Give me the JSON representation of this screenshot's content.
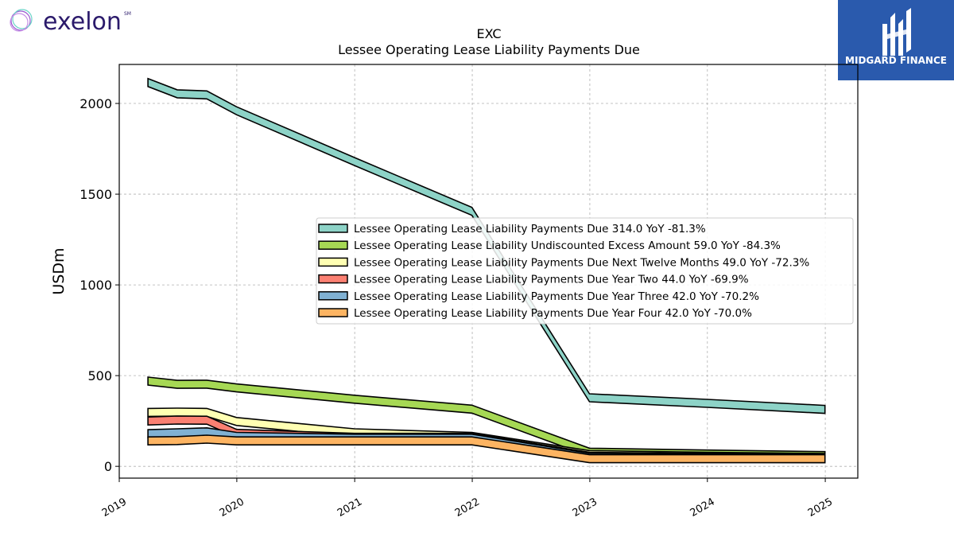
{
  "brand": {
    "left_logo_text": "exelon",
    "left_logo_mark": "SM",
    "right_logo_text": "MIDGARD FINANCE",
    "right_logo_bg": "#2a5aad"
  },
  "chart_data": {
    "type": "area",
    "title": "EXC",
    "subtitle": "Lessee Operating Lease Liability Payments Due",
    "ylabel": "USDm",
    "xlabel": "",
    "ylim": [
      -65,
      2215
    ],
    "yticks": [
      0,
      500,
      1000,
      1500,
      2000
    ],
    "xlim": [
      "2019-01-01",
      "2025-04-12"
    ],
    "xticks": [
      "2019",
      "2020",
      "2021",
      "2022",
      "2023",
      "2024",
      "2025"
    ],
    "xtick_dates": [
      "2019-01-01",
      "2020-01-01",
      "2021-01-01",
      "2022-01-01",
      "2023-01-01",
      "2024-01-01",
      "2025-01-01"
    ],
    "grid": true,
    "legend_position": "center-right",
    "x": [
      "2019-03-31",
      "2019-06-30",
      "2019-09-30",
      "2019-12-31",
      "2020-12-31",
      "2021-12-31",
      "2022-12-31",
      "2023-12-31",
      "2024-12-31"
    ],
    "series": [
      {
        "name": "Lessee Operating Lease Liability Payments Due",
        "legend": "Lessee Operating Lease Liability Payments Due  314.0 YoY -81.3%",
        "color": "#8dd3c7",
        "values": [
          2115,
          2053,
          2047,
          1960,
          1680,
          1405,
          378,
          347,
          314
        ]
      },
      {
        "name": "Lessee Operating Lease Liability Undiscounted Excess Amount",
        "legend": "Lessee Operating Lease Liability Undiscounted Excess Amount  59.0 YoY -84.3%",
        "color": "#a6d854",
        "values": [
          470,
          452,
          453,
          432,
          370,
          315,
          78,
          68,
          59
        ]
      },
      {
        "name": "Lessee Operating Lease Liability Payments Due Next Twelve Months",
        "legend": "Lessee Operating Lease Liability Payments Due Next Twelve Months  49.0 YoY -72.3%",
        "color": "#ffffb3",
        "values": [
          297,
          299,
          297,
          247,
          185,
          165,
          65,
          55,
          49
        ]
      },
      {
        "name": "Lessee Operating Lease Liability Payments Due Year Two",
        "legend": "Lessee Operating Lease Liability Payments Due Year Two  44.0 YoY -69.9%",
        "color": "#fb8072",
        "values": [
          250,
          255,
          254,
          182,
          160,
          160,
          55,
          50,
          44
        ]
      },
      {
        "name": "Lessee Operating Lease Liability Payments Due Year Three",
        "legend": "Lessee Operating Lease Liability Payments Due Year Three  42.0 YoY -70.2%",
        "color": "#80b1d3",
        "values": [
          180,
          185,
          190,
          165,
          155,
          155,
          50,
          45,
          42
        ]
      },
      {
        "name": "Lessee Operating Lease Liability Payments Due Year Four",
        "legend": "Lessee Operating Lease Liability Payments Due Year Four  42.0 YoY -70.0%",
        "color": "#fdb462",
        "values": [
          140,
          142,
          150,
          140,
          140,
          140,
          42,
          42,
          42
        ]
      }
    ]
  }
}
